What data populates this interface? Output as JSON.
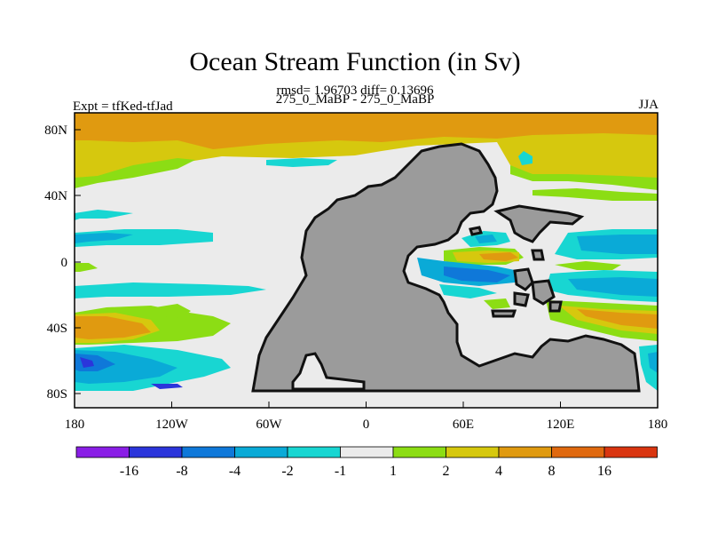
{
  "plot": {
    "title": "Ocean Stream Function (in Sv)",
    "stats": "rmsd= 1.96703 diff= 0.13696",
    "subtitle": "275_0_MaBP - 275_0_MaBP",
    "left_label": "Expt = tfKed-tfJad",
    "right_label": "JJA"
  },
  "axes": {
    "x_ticks": [
      "180",
      "120W",
      "60W",
      "0",
      "60E",
      "120E",
      "180"
    ],
    "y_ticks": [
      "80N",
      "40N",
      "0",
      "40S",
      "80S"
    ]
  },
  "colorbar": {
    "labels": [
      "-16",
      "-8",
      "-4",
      "-2",
      "-1",
      "1",
      "2",
      "4",
      "8",
      "16"
    ],
    "colors": [
      "#8A1EE6",
      "#2B35DB",
      "#0F78D9",
      "#0AAAD7",
      "#18D6D2",
      "#EBEBEB",
      "#8CDD14",
      "#D6C80E",
      "#E09A10",
      "#E0690F",
      "#D93510"
    ]
  },
  "chart_data": {
    "type": "heatmap",
    "title": "Ocean Stream Function (in Sv)",
    "units": "Sv",
    "xlim": [
      -180,
      180
    ],
    "ylim": [
      -90,
      90
    ],
    "contour_levels": [
      -16,
      -8,
      -4,
      -2,
      -1,
      1,
      2,
      4,
      8,
      16
    ],
    "land_color": "#9B9B9B"
  }
}
